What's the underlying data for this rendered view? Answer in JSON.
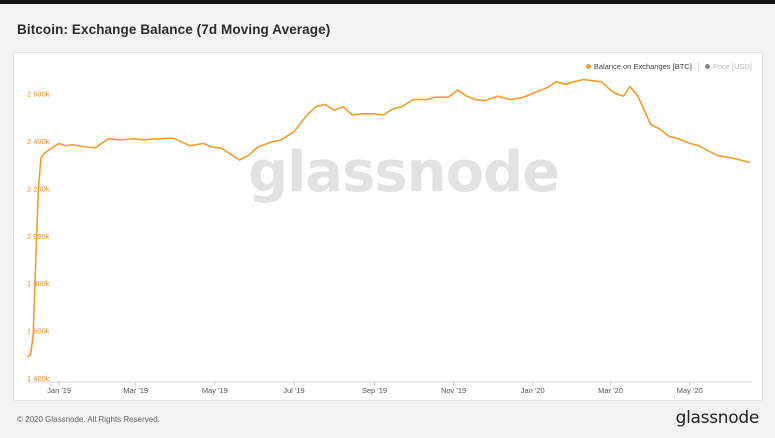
{
  "title": "Bitcoin: Exchange Balance (7d Moving Average)",
  "legend": [
    {
      "label": "Balance on Exchanges [BTC]",
      "color": "#f09d2c"
    },
    {
      "label": "Price [USD]",
      "color": "#888888"
    }
  ],
  "watermark": "glassnode",
  "footer": {
    "copyright": "© 2020 Glassnode. All Rights Reserved.",
    "logo": "glassnode"
  },
  "colors": {
    "line": "#f09d2c",
    "ytick": "#e0922b",
    "axis_text": "#555555"
  },
  "chart_data": {
    "type": "line",
    "title": "Bitcoin: Exchange Balance (7d Moving Average)",
    "xlabel": "",
    "ylabel": "",
    "x_ticks": [
      "Jan '19",
      "Mar '19",
      "May '19",
      "Jul '19",
      "Sep '19",
      "Nov '19",
      "Jan '20",
      "Mar '20",
      "May '20"
    ],
    "x_tick_dates": [
      "2019-01-01",
      "2019-03-01",
      "2019-05-01",
      "2019-07-01",
      "2019-09-01",
      "2019-11-01",
      "2020-01-01",
      "2020-03-01",
      "2020-05-01"
    ],
    "y_ticks": [
      1400000,
      1600000,
      1800000,
      2000000,
      2200000,
      2400000,
      2600000
    ],
    "y_tick_labels": [
      "1 400k",
      "1 600k",
      "1 800k",
      "2 000k",
      "2 200k",
      "2 400k",
      "2 600k"
    ],
    "ylim": [
      1400000,
      2700000
    ],
    "xlim": [
      "2018-12-08",
      "2020-06-18"
    ],
    "grid": false,
    "legend_position": "top-right",
    "series": [
      {
        "name": "Balance on Exchanges [BTC]",
        "x": [
          "2018-12-08",
          "2018-12-10",
          "2018-12-12",
          "2018-12-14",
          "2018-12-16",
          "2018-12-18",
          "2018-12-21",
          "2018-12-26",
          "2019-01-01",
          "2019-01-06",
          "2019-01-11",
          "2019-01-16",
          "2019-01-21",
          "2019-01-29",
          "2019-02-08",
          "2019-02-18",
          "2019-02-28",
          "2019-03-06",
          "2019-03-13",
          "2019-03-20",
          "2019-03-30",
          "2019-04-12",
          "2019-04-22",
          "2019-04-29",
          "2019-05-06",
          "2019-05-13",
          "2019-05-20",
          "2019-05-27",
          "2019-06-03",
          "2019-06-13",
          "2019-06-21",
          "2019-07-01",
          "2019-07-11",
          "2019-07-18",
          "2019-07-25",
          "2019-08-01",
          "2019-08-08",
          "2019-08-15",
          "2019-08-22",
          "2019-09-01",
          "2019-09-08",
          "2019-09-15",
          "2019-09-22",
          "2019-10-01",
          "2019-10-11",
          "2019-10-18",
          "2019-10-28",
          "2019-11-04",
          "2019-11-11",
          "2019-11-18",
          "2019-11-25",
          "2019-12-05",
          "2019-12-15",
          "2019-12-25",
          "2020-01-05",
          "2020-01-12",
          "2020-01-19",
          "2020-01-26",
          "2020-02-02",
          "2020-02-09",
          "2020-02-16",
          "2020-02-23",
          "2020-03-01",
          "2020-03-05",
          "2020-03-11",
          "2020-03-16",
          "2020-03-22",
          "2020-04-01",
          "2020-04-08",
          "2020-04-15",
          "2020-04-22",
          "2020-05-01",
          "2020-05-08",
          "2020-05-15",
          "2020-05-22",
          "2020-06-01",
          "2020-06-09",
          "2020-06-16"
        ],
        "values": [
          1490000,
          1500000,
          1580000,
          1900000,
          2200000,
          2330000,
          2350000,
          2370000,
          2390000,
          2380000,
          2385000,
          2380000,
          2375000,
          2372000,
          2410000,
          2405000,
          2410000,
          2405000,
          2408000,
          2410000,
          2412000,
          2380000,
          2390000,
          2375000,
          2370000,
          2345000,
          2320000,
          2340000,
          2375000,
          2395000,
          2405000,
          2440000,
          2510000,
          2545000,
          2555000,
          2530000,
          2545000,
          2510000,
          2515000,
          2515000,
          2510000,
          2535000,
          2545000,
          2575000,
          2575000,
          2585000,
          2585000,
          2615000,
          2590000,
          2575000,
          2570000,
          2590000,
          2575000,
          2585000,
          2610000,
          2625000,
          2650000,
          2640000,
          2650000,
          2660000,
          2655000,
          2650000,
          2615000,
          2600000,
          2590000,
          2630000,
          2590000,
          2470000,
          2450000,
          2420000,
          2410000,
          2390000,
          2380000,
          2360000,
          2340000,
          2330000,
          2320000,
          2310000
        ]
      }
    ]
  }
}
